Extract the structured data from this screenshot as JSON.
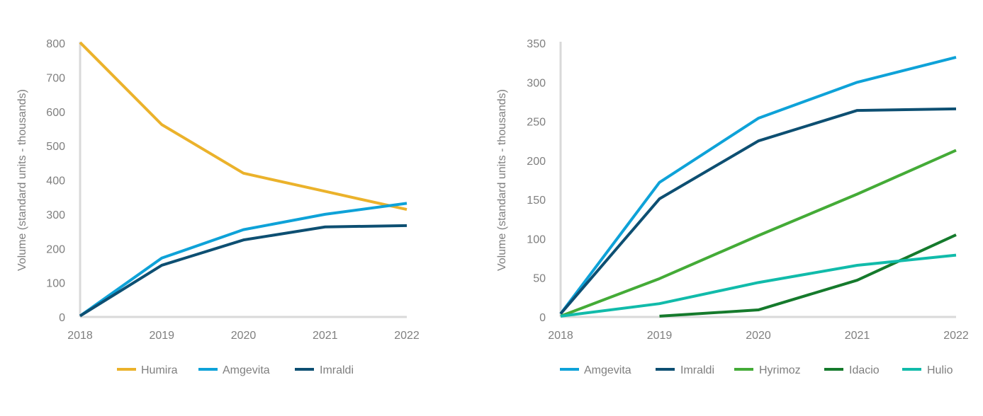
{
  "chart_data": [
    {
      "type": "line",
      "x": [
        "2018",
        "2019",
        "2020",
        "2021",
        "2022"
      ],
      "ylabel": "Volume (standard units - thousands)",
      "ylim": [
        0,
        800
      ],
      "yticks": [
        0,
        100,
        200,
        300,
        400,
        500,
        600,
        700,
        800
      ],
      "grid": false,
      "legend": "bottom",
      "series": [
        {
          "name": "Humira",
          "color": "#ebb22b",
          "values": [
            802,
            562,
            420,
            367,
            314
          ]
        },
        {
          "name": "Amgevita",
          "color": "#0ea2d8",
          "values": [
            3,
            172,
            255,
            300,
            332
          ]
        },
        {
          "name": "Imraldi",
          "color": "#0d4f72",
          "values": [
            3,
            151,
            225,
            263,
            267
          ]
        }
      ]
    },
    {
      "type": "line",
      "x": [
        "2018",
        "2019",
        "2020",
        "2021",
        "2022"
      ],
      "ylabel": "Volume (standard units - thousands)",
      "ylim": [
        0,
        350
      ],
      "yticks": [
        0,
        50,
        100,
        150,
        200,
        250,
        300,
        350
      ],
      "grid": false,
      "legend": "bottom",
      "series": [
        {
          "name": "Amgevita",
          "color": "#0ea2d8",
          "values": [
            4,
            172,
            254,
            300,
            332
          ]
        },
        {
          "name": "Imraldi",
          "color": "#0d4f72",
          "values": [
            4,
            151,
            225,
            264,
            266
          ]
        },
        {
          "name": "Hyrimoz",
          "color": "#44ab37",
          "values": [
            1,
            49,
            104,
            157,
            213
          ]
        },
        {
          "name": "Idacio",
          "color": "#157a2c",
          "values": [
            null,
            1,
            9,
            47,
            105
          ]
        },
        {
          "name": "Hulio",
          "color": "#11bbaa",
          "values": [
            1,
            17,
            44,
            66,
            79
          ]
        }
      ]
    }
  ]
}
